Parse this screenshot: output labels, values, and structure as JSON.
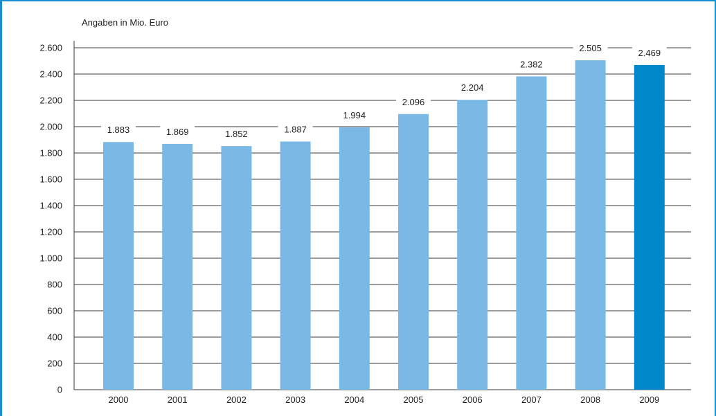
{
  "chart_data": {
    "type": "bar",
    "unit_label": "Angaben in Mio. Euro",
    "categories": [
      "2000",
      "2001",
      "2002",
      "2003",
      "2004",
      "2005",
      "2006",
      "2007",
      "2008",
      "2009"
    ],
    "values": [
      1883,
      1869,
      1852,
      1887,
      1994,
      2096,
      2204,
      2382,
      2505,
      2469
    ],
    "value_labels": [
      "1.883",
      "1.869",
      "1.852",
      "1.887",
      "1.994",
      "2.096",
      "2.204",
      "2.382",
      "2.505",
      "2.469"
    ],
    "yticks": [
      0,
      200,
      400,
      600,
      800,
      1000,
      1200,
      1400,
      1600,
      1800,
      2000,
      2200,
      2400,
      2600
    ],
    "ytick_labels": [
      "0",
      "200",
      "400",
      "600",
      "800",
      "1.000",
      "1.200",
      "1.400",
      "1.600",
      "1.800",
      "2.000",
      "2.200",
      "2.400",
      "2.600"
    ],
    "ylim": [
      0,
      2600
    ],
    "grid": true,
    "bar_color": "#7ab8e6",
    "highlight_color": "#0087cc",
    "highlight_category": "2009",
    "frame_color": "#1a8fd0",
    "grid_color": "#3a3a3a"
  }
}
